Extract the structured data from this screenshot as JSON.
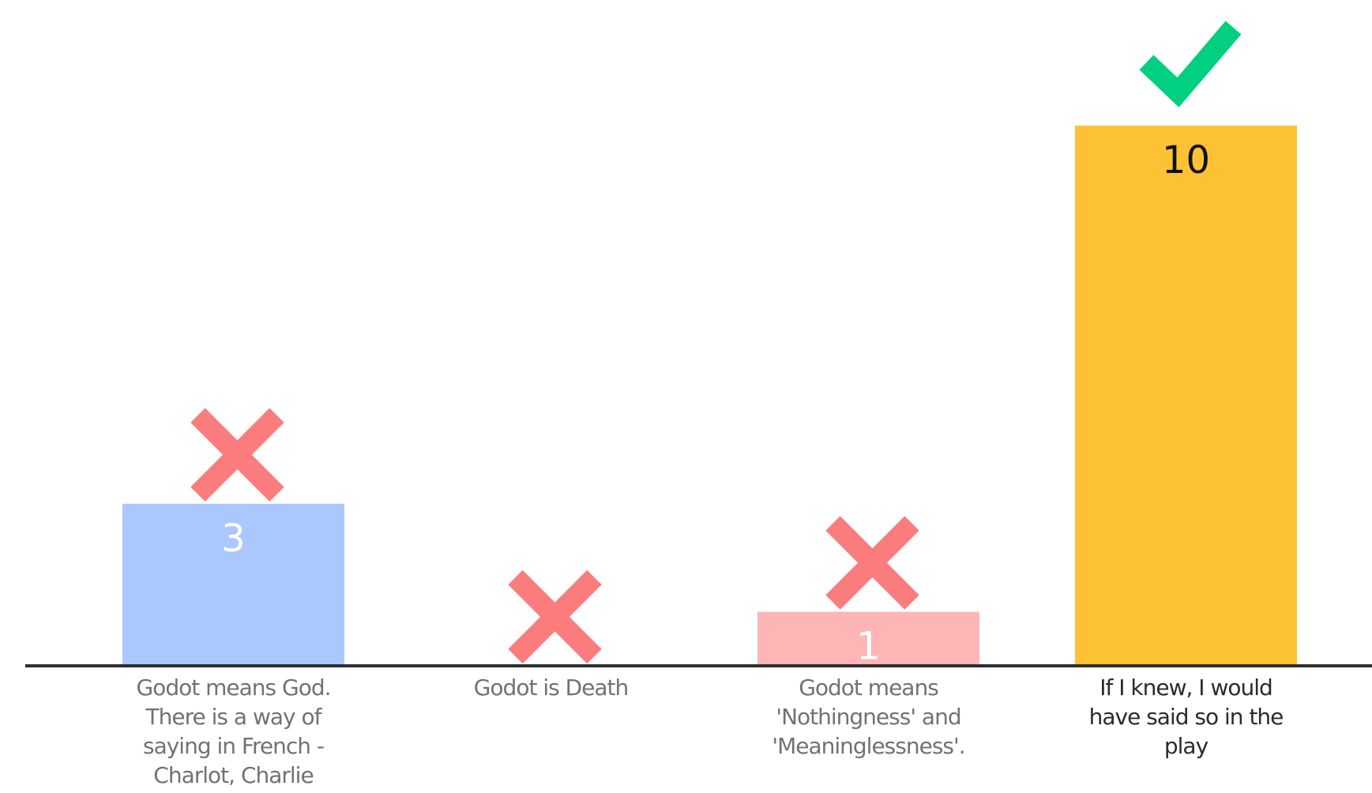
{
  "chart_data": {
    "type": "bar",
    "title": "",
    "xlabel": "",
    "ylabel": "",
    "ylim": [
      0,
      10
    ],
    "grid": false,
    "categories": [
      "Godot means God. There is a way of saying in French - Charlot, Charlie",
      "Godot is Death",
      "Godot means 'Nothingness' and 'Meaninglessness'.",
      "If I knew, I would have said so in the play"
    ],
    "category_label_lines": [
      [
        "Godot means God.",
        "There is a way of",
        "saying in French -",
        "Charlot, Charlie"
      ],
      [
        "Godot is Death"
      ],
      [
        "Godot means",
        "'Nothingness' and",
        "'Meaninglessness'."
      ],
      [
        "If I knew, I would",
        "have said so in the",
        "play"
      ]
    ],
    "values": [
      3,
      0,
      1,
      10
    ],
    "value_labels": [
      "3",
      "",
      "1",
      "10"
    ],
    "bar_colors": [
      "#aac8fd",
      "#ffffff",
      "#ffb5b5",
      "#fdc233"
    ],
    "value_label_colors": [
      "#ffffff",
      "#ffffff",
      "#ffffff",
      "#111111"
    ],
    "markers": [
      "cross-icon",
      "cross-icon",
      "cross-icon",
      "check-icon"
    ],
    "correct": [
      false,
      false,
      false,
      true
    ],
    "marker_colors": {
      "cross": "#fb7c7c",
      "check": "#00d07f"
    },
    "axis_color": "#2b2f33"
  }
}
